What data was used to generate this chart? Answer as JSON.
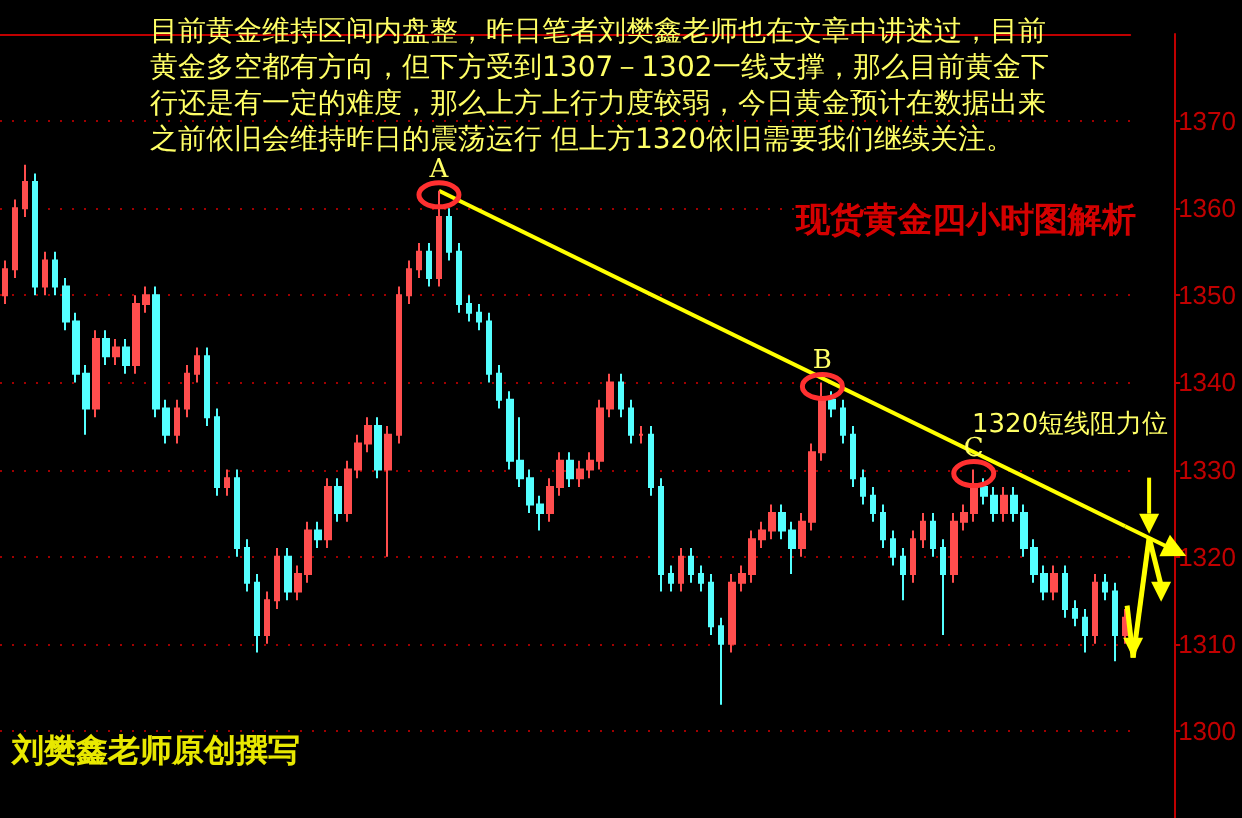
{
  "chart_data": {
    "type": "candlestick",
    "title": "现货黄金四小时图解析",
    "subtitle": "目前黄金维持区间内盘整，昨日笔者刘樊鑫老师也在文章中讲述过，目前黄金多空都有方向，但下方受到1307－1302一线支撑，那么目前黄金下行还是有一定的难度，那么上方上行力度较弱，今日黄金预计在数据出来之前依旧会维持昨日的震荡运行 但上方1320依旧需要我们继续关注。",
    "annotations": [
      {
        "text": "A",
        "y": 1362
      },
      {
        "text": "B",
        "y": 1340
      },
      {
        "text": "C",
        "y": 1330
      },
      "1320短线阻力位",
      "刘樊鑫老师原创撰写"
    ],
    "categories": [
      null,
      null,
      null,
      null,
      null,
      null,
      null,
      null,
      null,
      null,
      null,
      null,
      null,
      null,
      null,
      null,
      null,
      null,
      null,
      null,
      null,
      null,
      null,
      null,
      null,
      null,
      null,
      null,
      null,
      null,
      null,
      null,
      null,
      null,
      null,
      null,
      null,
      null,
      null,
      null,
      null,
      null,
      null,
      null,
      null,
      null,
      null,
      null,
      null,
      null,
      null,
      null,
      null,
      null,
      null,
      null,
      null,
      null,
      null,
      null,
      null,
      null,
      null,
      null,
      null,
      null,
      null,
      null,
      null,
      null,
      null,
      null,
      null,
      null,
      null,
      null,
      null,
      null,
      null,
      null,
      null,
      null,
      null,
      null,
      null,
      null,
      null,
      null,
      null,
      null,
      null,
      null,
      null,
      null,
      null,
      null,
      null,
      null,
      null,
      null,
      null,
      null,
      null,
      null,
      null,
      null,
      null,
      null,
      null,
      null,
      null,
      null
    ],
    "ohlc": [
      [
        1350,
        1354,
        1349,
        1353
      ],
      [
        1353,
        1361,
        1352,
        1360
      ],
      [
        1360,
        1365,
        1359,
        1363
      ],
      [
        1363,
        1364,
        1350,
        1351
      ],
      [
        1351,
        1355,
        1350,
        1354
      ],
      [
        1354,
        1355,
        1350,
        1351
      ],
      [
        1351,
        1352,
        1346,
        1347
      ],
      [
        1347,
        1348,
        1340,
        1341
      ],
      [
        1341,
        1342,
        1334,
        1337
      ],
      [
        1337,
        1346,
        1336,
        1345
      ],
      [
        1345,
        1346,
        1342,
        1343
      ],
      [
        1343,
        1345,
        1342,
        1344
      ],
      [
        1344,
        1345,
        1341,
        1342
      ],
      [
        1342,
        1350,
        1341,
        1349
      ],
      [
        1349,
        1351,
        1348,
        1350
      ],
      [
        1350,
        1351,
        1336,
        1337
      ],
      [
        1337,
        1338,
        1333,
        1334
      ],
      [
        1334,
        1338,
        1333,
        1337
      ],
      [
        1337,
        1342,
        1336,
        1341
      ],
      [
        1341,
        1344,
        1340,
        1343
      ],
      [
        1343,
        1344,
        1335,
        1336
      ],
      [
        1336,
        1337,
        1327,
        1328
      ],
      [
        1328,
        1330,
        1327,
        1329
      ],
      [
        1329,
        1330,
        1320,
        1321
      ],
      [
        1321,
        1322,
        1316,
        1317
      ],
      [
        1317,
        1318,
        1309,
        1311
      ],
      [
        1311,
        1316,
        1310,
        1315
      ],
      [
        1315,
        1321,
        1314,
        1320
      ],
      [
        1320,
        1321,
        1315,
        1316
      ],
      [
        1316,
        1319,
        1315,
        1318
      ],
      [
        1318,
        1324,
        1317,
        1323
      ],
      [
        1323,
        1324,
        1321,
        1322
      ],
      [
        1322,
        1329,
        1321,
        1328
      ],
      [
        1328,
        1329,
        1324,
        1325
      ],
      [
        1325,
        1331,
        1324,
        1330
      ],
      [
        1330,
        1334,
        1329,
        1333
      ],
      [
        1333,
        1336,
        1332,
        1335
      ],
      [
        1335,
        1336,
        1329,
        1330
      ],
      [
        1330,
        1335,
        1320,
        1334
      ],
      [
        1334,
        1351,
        1333,
        1350
      ],
      [
        1350,
        1354,
        1349,
        1353
      ],
      [
        1353,
        1356,
        1352,
        1355
      ],
      [
        1355,
        1356,
        1351,
        1352
      ],
      [
        1352,
        1362,
        1351,
        1359
      ],
      [
        1359,
        1360,
        1354,
        1355
      ],
      [
        1355,
        1356,
        1348,
        1349
      ],
      [
        1349,
        1350,
        1347,
        1348
      ],
      [
        1348,
        1349,
        1346,
        1347
      ],
      [
        1347,
        1348,
        1340,
        1341
      ],
      [
        1341,
        1342,
        1337,
        1338
      ],
      [
        1338,
        1339,
        1330,
        1331
      ],
      [
        1331,
        1336,
        1328,
        1329
      ],
      [
        1329,
        1330,
        1325,
        1326
      ],
      [
        1326,
        1327,
        1323,
        1325
      ],
      [
        1325,
        1329,
        1324,
        1328
      ],
      [
        1328,
        1332,
        1327,
        1331
      ],
      [
        1331,
        1332,
        1328,
        1329
      ],
      [
        1329,
        1331,
        1328,
        1330
      ],
      [
        1330,
        1332,
        1329,
        1331
      ],
      [
        1331,
        1338,
        1330,
        1337
      ],
      [
        1337,
        1341,
        1336,
        1340
      ],
      [
        1340,
        1341,
        1336,
        1337
      ],
      [
        1337,
        1338,
        1333,
        1334
      ],
      [
        1334,
        1335,
        1333,
        1334
      ],
      [
        1334,
        1335,
        1327,
        1328
      ],
      [
        1328,
        1329,
        1316,
        1318
      ],
      [
        1318,
        1319,
        1316,
        1317
      ],
      [
        1317,
        1321,
        1316,
        1320
      ],
      [
        1320,
        1321,
        1317,
        1318
      ],
      [
        1318,
        1319,
        1316,
        1317
      ],
      [
        1317,
        1318,
        1311,
        1312
      ],
      [
        1312,
        1313,
        1303,
        1310
      ],
      [
        1310,
        1318,
        1309,
        1317
      ],
      [
        1317,
        1319,
        1316,
        1318
      ],
      [
        1318,
        1323,
        1317,
        1322
      ],
      [
        1322,
        1324,
        1321,
        1323
      ],
      [
        1323,
        1326,
        1322,
        1325
      ],
      [
        1325,
        1326,
        1322,
        1323
      ],
      [
        1323,
        1324,
        1318,
        1321
      ],
      [
        1321,
        1325,
        1320,
        1324
      ],
      [
        1324,
        1333,
        1323,
        1332
      ],
      [
        1332,
        1340,
        1331,
        1338
      ],
      [
        1338,
        1339,
        1336,
        1337
      ],
      [
        1337,
        1338,
        1333,
        1334
      ],
      [
        1334,
        1335,
        1328,
        1329
      ],
      [
        1329,
        1330,
        1326,
        1327
      ],
      [
        1327,
        1328,
        1324,
        1325
      ],
      [
        1325,
        1326,
        1321,
        1322
      ],
      [
        1322,
        1323,
        1319,
        1320
      ],
      [
        1320,
        1321,
        1315,
        1318
      ],
      [
        1318,
        1323,
        1317,
        1322
      ],
      [
        1322,
        1325,
        1321,
        1324
      ],
      [
        1324,
        1325,
        1320,
        1321
      ],
      [
        1321,
        1322,
        1311,
        1318
      ],
      [
        1318,
        1325,
        1317,
        1324
      ],
      [
        1324,
        1326,
        1323,
        1325
      ],
      [
        1325,
        1330,
        1324,
        1328
      ],
      [
        1328,
        1329,
        1326,
        1327
      ],
      [
        1327,
        1328,
        1324,
        1325
      ],
      [
        1325,
        1328,
        1324,
        1327
      ],
      [
        1327,
        1328,
        1324,
        1325
      ],
      [
        1325,
        1326,
        1320,
        1321
      ],
      [
        1321,
        1322,
        1317,
        1318
      ],
      [
        1318,
        1319,
        1315,
        1316
      ],
      [
        1316,
        1319,
        1315,
        1318
      ],
      [
        1318,
        1319,
        1313,
        1314
      ],
      [
        1314,
        1315,
        1312,
        1313
      ],
      [
        1313,
        1314,
        1309,
        1311
      ],
      [
        1311,
        1318,
        1310,
        1317
      ],
      [
        1317,
        1318,
        1315,
        1316
      ],
      [
        1316,
        1317,
        1308,
        1311
      ],
      [
        1311,
        1314,
        1310,
        1313
      ]
    ],
    "series": [
      {
        "type": "line",
        "color": "#ffff00",
        "values": [
          null,
          null,
          null,
          null,
          null,
          null,
          null,
          null,
          null,
          null,
          null,
          null,
          null,
          null,
          null,
          null,
          null,
          null,
          null,
          null,
          null,
          null,
          null,
          null,
          null,
          null,
          null,
          null,
          null,
          null,
          null,
          null,
          null,
          null,
          null,
          null,
          null,
          null,
          null,
          null,
          null,
          null,
          null,
          1362,
          null,
          null,
          null,
          null,
          null,
          null,
          null,
          null,
          null,
          null,
          null,
          null,
          null,
          null,
          null,
          null,
          null,
          null,
          null,
          null,
          null,
          null,
          null,
          null,
          null,
          null,
          null,
          null,
          null,
          null,
          null,
          null,
          null,
          null,
          null,
          null,
          null,
          null,
          null,
          null,
          null,
          null,
          null,
          null,
          null,
          null,
          null,
          null,
          null,
          null,
          null,
          null,
          null,
          null,
          null,
          null,
          null,
          null,
          null,
          null,
          null,
          null,
          null,
          null,
          null,
          null,
          null,
          1323.5
        ]
      }
    ],
    "ylim": [
      1290,
      1380
    ],
    "yticks": [
      1300,
      1310,
      1320,
      1330,
      1340,
      1350,
      1360,
      1370
    ],
    "grid": "y",
    "tick_labels": "y"
  }
}
